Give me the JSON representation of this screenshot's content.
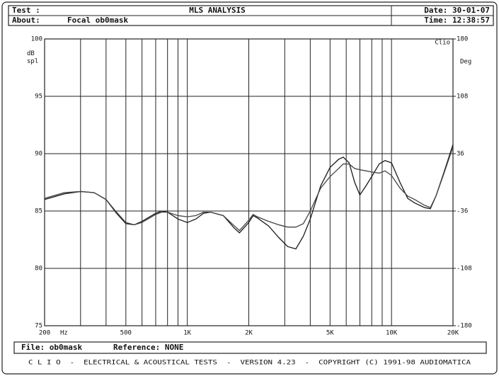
{
  "header": {
    "test_label": "Test :",
    "title": "MLS ANALYSIS",
    "date": "Date: 30-01-07",
    "about_label": "About:",
    "about": "Focal ob0mask",
    "time": "Time: 12:38:57"
  },
  "footer": {
    "file": "File: ob0mask",
    "reference": "Reference: NONE",
    "credits": "C L I O  -  ELECTRICAL & ACOUSTICAL TESTS  -  VERSION 4.23  -  COPYRIGHT (C) 1991-98 AUDIOMATICA"
  },
  "chart_data": {
    "type": "line",
    "ylabel": "dB spl",
    "y2label": "Deg",
    "xlabel": "Hz",
    "brand": "Clio",
    "xscale": "log",
    "xlim": [
      200,
      20000
    ],
    "xticks": [
      {
        "value": 200,
        "label": "200"
      },
      {
        "value": 500,
        "label": "500"
      },
      {
        "value": 1000,
        "label": "1K"
      },
      {
        "value": 2000,
        "label": "2K"
      },
      {
        "value": 5000,
        "label": "5K"
      },
      {
        "value": 10000,
        "label": "10K"
      },
      {
        "value": 20000,
        "label": "20K"
      }
    ],
    "x_minor_grid": [
      300,
      400,
      600,
      700,
      800,
      900,
      3000,
      4000,
      6000,
      7000,
      8000,
      9000
    ],
    "ylim": [
      75,
      100
    ],
    "yticks": [
      75,
      80,
      85,
      90,
      95,
      100
    ],
    "y2lim": [
      -180,
      180
    ],
    "y2ticks": [
      -180,
      -108,
      -36,
      36,
      108,
      180
    ],
    "grid": true,
    "x": [
      200,
      250,
      300,
      350,
      400,
      450,
      500,
      550,
      600,
      700,
      750,
      800,
      900,
      1000,
      1100,
      1200,
      1300,
      1500,
      1700,
      1800,
      2000,
      2100,
      2200,
      2500,
      2800,
      3100,
      3400,
      3700,
      4000,
      4500,
      5000,
      5500,
      5800,
      6200,
      6600,
      7000,
      7500,
      8000,
      8700,
      9300,
      10000,
      11000,
      12000,
      13000,
      14500,
      15500,
      16500,
      18000,
      20000
    ],
    "series": [
      {
        "color": "#1a1a1a",
        "values": [
          86.0,
          86.5,
          86.7,
          86.6,
          86.0,
          84.8,
          83.9,
          83.8,
          84.1,
          84.8,
          85.0,
          84.9,
          84.3,
          84.0,
          84.3,
          84.8,
          84.9,
          84.6,
          83.5,
          83.1,
          84.0,
          84.6,
          84.4,
          83.7,
          82.7,
          81.9,
          81.7,
          82.8,
          84.3,
          87.2,
          88.8,
          89.5,
          89.7,
          89.2,
          87.5,
          86.4,
          87.2,
          88.0,
          89.1,
          89.4,
          89.2,
          87.5,
          86.1,
          85.7,
          85.3,
          85.2,
          86.3,
          88.3,
          90.8
        ]
      },
      {
        "color": "#444444",
        "values": [
          86.1,
          86.6,
          86.7,
          86.6,
          86.0,
          84.9,
          84.0,
          83.8,
          84.0,
          84.7,
          84.9,
          84.9,
          84.6,
          84.5,
          84.6,
          84.9,
          84.9,
          84.6,
          83.7,
          83.3,
          84.2,
          84.7,
          84.5,
          84.1,
          83.8,
          83.6,
          83.6,
          83.9,
          85.0,
          87.0,
          88.0,
          88.7,
          89.1,
          89.1,
          88.7,
          88.6,
          88.5,
          88.4,
          88.3,
          88.5,
          88.1,
          87.0,
          86.3,
          86.0,
          85.5,
          85.3,
          86.3,
          88.2,
          90.6
        ]
      }
    ]
  }
}
